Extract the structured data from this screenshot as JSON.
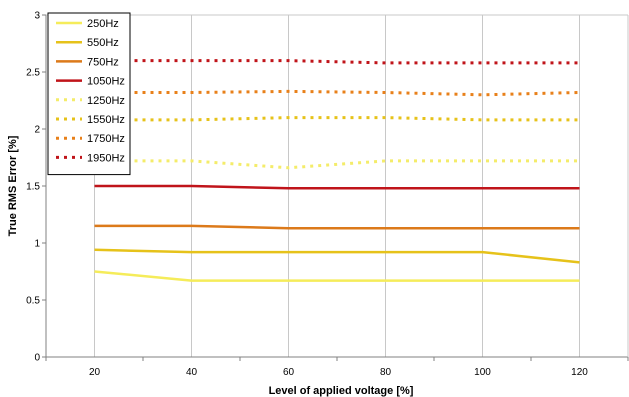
{
  "chart_data": {
    "type": "line",
    "title": "",
    "xlabel": "Level of applied voltage [%]",
    "ylabel": "True RMS Error [%]",
    "xlim": [
      10,
      130
    ],
    "ylim": [
      0,
      3
    ],
    "xticks": [
      20,
      40,
      60,
      80,
      100,
      120
    ],
    "yticks": [
      0,
      0.5,
      1,
      1.5,
      2,
      2.5,
      3
    ],
    "ytick_labels": [
      "0",
      "0.5",
      "1",
      "1.5",
      "2",
      "2.5",
      "3"
    ],
    "grid": "vertical",
    "legend_position": "top-left",
    "series": [
      {
        "name": "250Hz",
        "color": "#f5ec5a",
        "style": "solid",
        "x": [
          20,
          40,
          60,
          80,
          100,
          120
        ],
        "values": [
          0.75,
          0.67,
          0.67,
          0.67,
          0.67,
          0.67
        ]
      },
      {
        "name": "550Hz",
        "color": "#e6c21a",
        "style": "solid",
        "x": [
          20,
          40,
          60,
          80,
          100,
          120
        ],
        "values": [
          0.94,
          0.92,
          0.92,
          0.92,
          0.92,
          0.83
        ]
      },
      {
        "name": "750Hz",
        "color": "#dc7a1a",
        "style": "solid",
        "x": [
          20,
          40,
          60,
          80,
          100,
          120
        ],
        "values": [
          1.15,
          1.15,
          1.13,
          1.13,
          1.13,
          1.13
        ]
      },
      {
        "name": "1050Hz",
        "color": "#c0141a",
        "style": "solid",
        "x": [
          20,
          40,
          60,
          80,
          100,
          120
        ],
        "values": [
          1.5,
          1.5,
          1.48,
          1.48,
          1.48,
          1.48
        ]
      },
      {
        "name": "1250Hz",
        "color": "#f4ec6a",
        "style": "dashed",
        "x": [
          20,
          40,
          60,
          80,
          100,
          120
        ],
        "values": [
          1.72,
          1.72,
          1.66,
          1.72,
          1.72,
          1.72
        ]
      },
      {
        "name": "1550Hz",
        "color": "#e6c21a",
        "style": "dashed",
        "x": [
          20,
          40,
          60,
          80,
          100,
          120
        ],
        "values": [
          2.08,
          2.08,
          2.1,
          2.1,
          2.08,
          2.08
        ]
      },
      {
        "name": "1750Hz",
        "color": "#e8801a",
        "style": "dashed",
        "x": [
          20,
          40,
          60,
          80,
          100,
          120
        ],
        "values": [
          2.32,
          2.32,
          2.33,
          2.32,
          2.3,
          2.32
        ]
      },
      {
        "name": "1950Hz",
        "color": "#c0141a",
        "style": "dashed",
        "x": [
          20,
          40,
          60,
          80,
          100,
          120
        ],
        "values": [
          2.6,
          2.6,
          2.6,
          2.58,
          2.58,
          2.58
        ]
      }
    ]
  }
}
